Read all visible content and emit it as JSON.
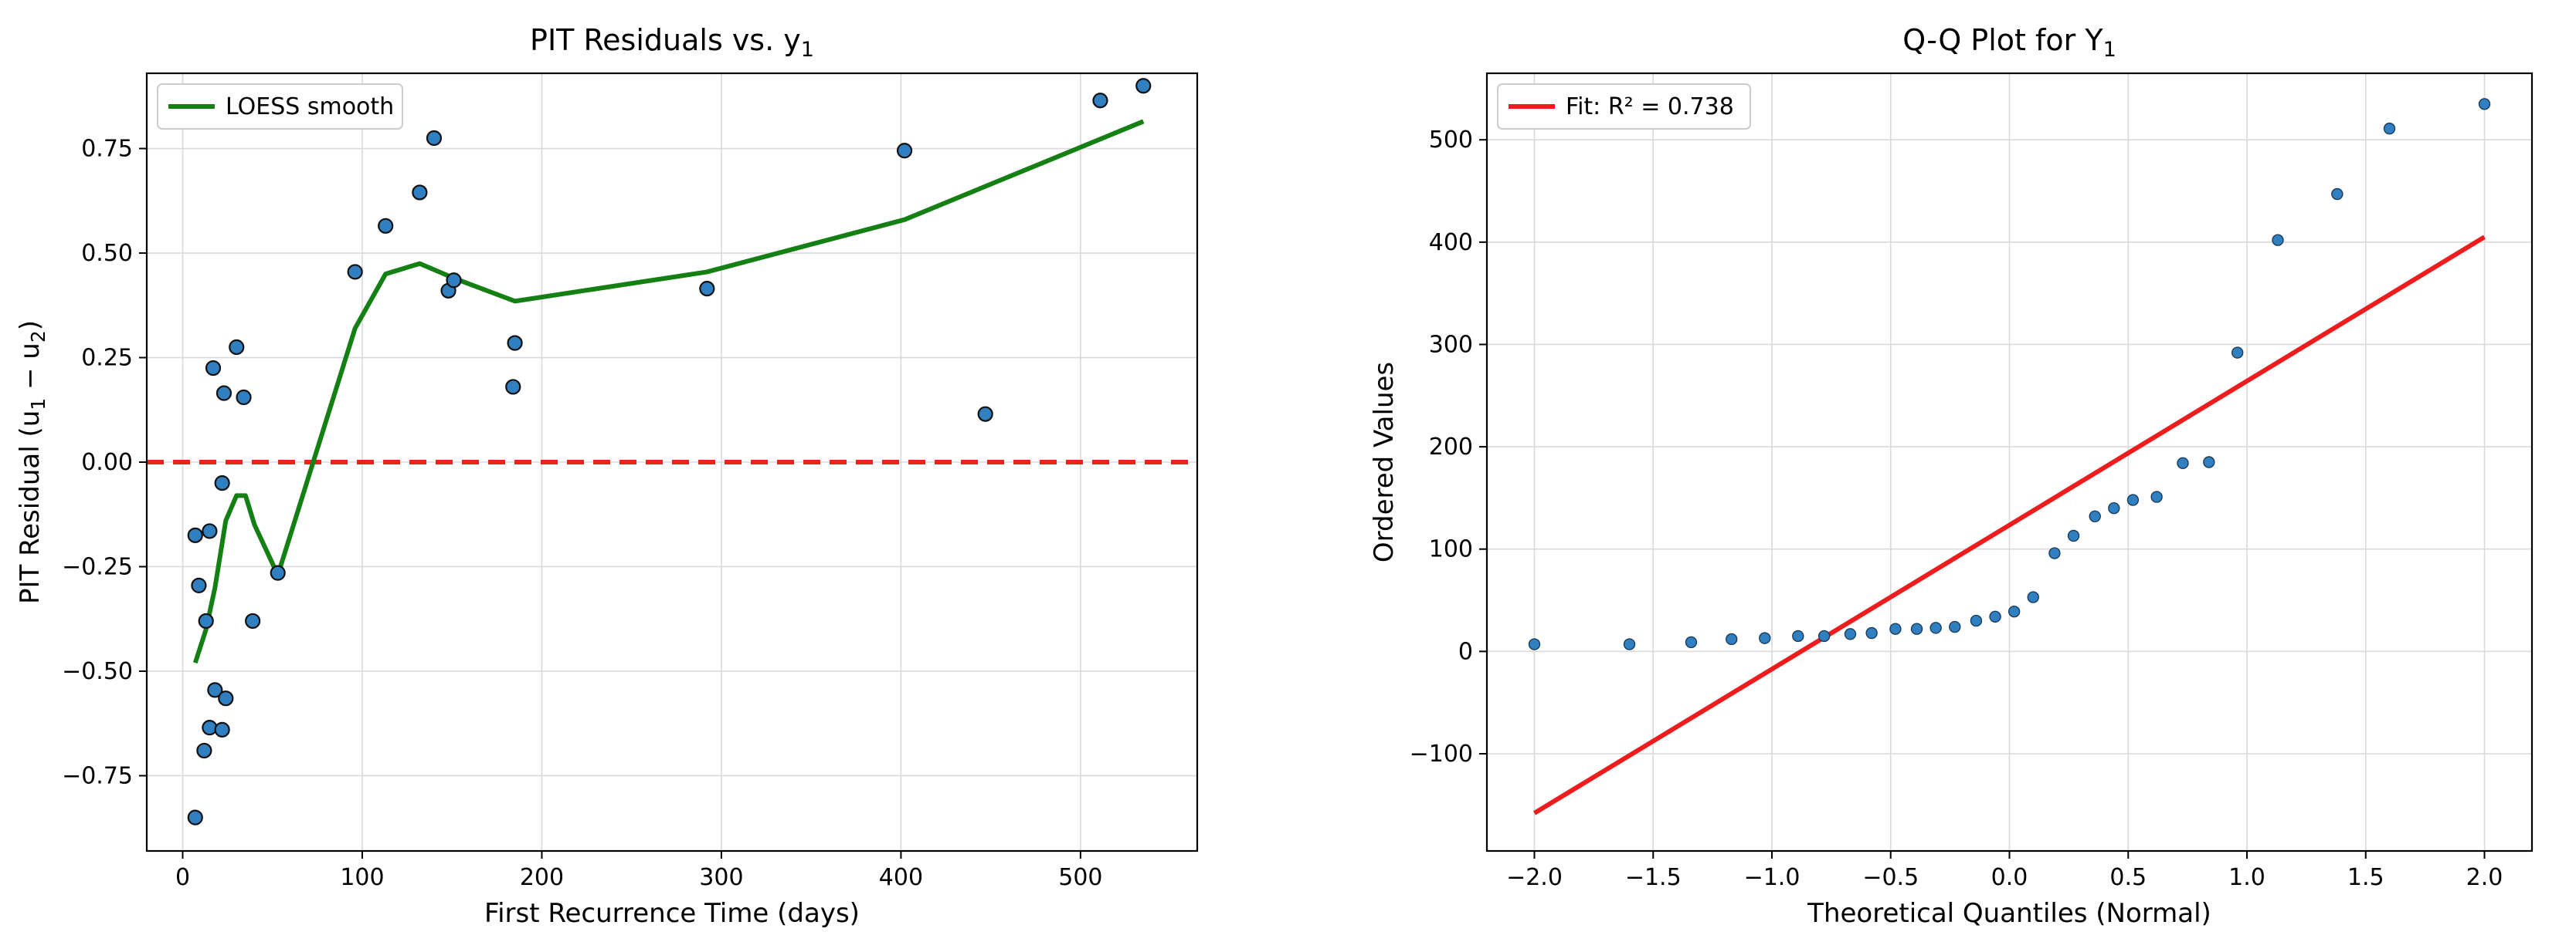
{
  "chart_data": [
    {
      "type": "scatter",
      "title": "PIT Residuals vs. y",
      "title_sub": "1",
      "xlabel": "First Recurrence Time (days)",
      "ylabel": "PIT Residual (u",
      "ylabel_sub1": "1",
      "ylabel_mid": " − u",
      "ylabel_sub2": "2",
      "ylabel_end": ")",
      "xlim": [
        -20,
        565
      ],
      "ylim": [
        -0.93,
        0.93
      ],
      "xticks": [
        0,
        100,
        200,
        300,
        400,
        500
      ],
      "yticks": [
        -0.75,
        -0.5,
        -0.25,
        0.0,
        0.25,
        0.5,
        0.75
      ],
      "ytick_labels": [
        "−0.75",
        "−0.50",
        "−0.25",
        "0.00",
        "0.25",
        "0.50",
        "0.75"
      ],
      "grid": true,
      "legend_position": "top-left",
      "points": [
        {
          "x": 7,
          "y": -0.85
        },
        {
          "x": 7,
          "y": -0.175
        },
        {
          "x": 9,
          "y": -0.295
        },
        {
          "x": 12,
          "y": -0.69
        },
        {
          "x": 13,
          "y": -0.38
        },
        {
          "x": 15,
          "y": -0.635
        },
        {
          "x": 15,
          "y": -0.165
        },
        {
          "x": 17,
          "y": 0.225
        },
        {
          "x": 18,
          "y": -0.545
        },
        {
          "x": 22,
          "y": -0.64
        },
        {
          "x": 22,
          "y": -0.05
        },
        {
          "x": 23,
          "y": 0.165
        },
        {
          "x": 24,
          "y": -0.565
        },
        {
          "x": 30,
          "y": 0.275
        },
        {
          "x": 34,
          "y": 0.155
        },
        {
          "x": 39,
          "y": -0.38
        },
        {
          "x": 53,
          "y": -0.265
        },
        {
          "x": 96,
          "y": 0.455
        },
        {
          "x": 113,
          "y": 0.565
        },
        {
          "x": 132,
          "y": 0.645
        },
        {
          "x": 140,
          "y": 0.775
        },
        {
          "x": 148,
          "y": 0.41
        },
        {
          "x": 151,
          "y": 0.435
        },
        {
          "x": 184,
          "y": 0.18
        },
        {
          "x": 185,
          "y": 0.285
        },
        {
          "x": 292,
          "y": 0.415
        },
        {
          "x": 402,
          "y": 0.745
        },
        {
          "x": 447,
          "y": 0.115
        },
        {
          "x": 511,
          "y": 0.865
        },
        {
          "x": 535,
          "y": 0.9
        }
      ],
      "point_color": "#2f7fc1",
      "series": [
        {
          "name": "LOESS smooth",
          "color": "#148014",
          "x": [
            7,
            13,
            18,
            24,
            30,
            35,
            40,
            53,
            96,
            113,
            132,
            151,
            185,
            292,
            402,
            535
          ],
          "y": [
            -0.48,
            -0.4,
            -0.3,
            -0.14,
            -0.08,
            -0.08,
            -0.15,
            -0.27,
            0.32,
            0.45,
            0.475,
            0.44,
            0.385,
            0.455,
            0.58,
            0.815
          ]
        }
      ],
      "reference_line": {
        "y": 0.0,
        "color": "#e8241c",
        "style": "dashed"
      }
    },
    {
      "type": "scatter",
      "title": "Q-Q Plot for Y",
      "title_sub": "1",
      "xlabel": "Theoretical Quantiles (Normal)",
      "ylabel": "Ordered Values",
      "xlim": [
        -2.2,
        2.2
      ],
      "ylim": [
        -195,
        565
      ],
      "xticks": [
        -2.0,
        -1.5,
        -1.0,
        -0.5,
        0.0,
        0.5,
        1.0,
        1.5,
        2.0
      ],
      "xtick_labels": [
        "−2.0",
        "−1.5",
        "−1.0",
        "−0.5",
        "0.0",
        "0.5",
        "1.0",
        "1.5",
        "2.0"
      ],
      "yticks": [
        -100,
        0,
        100,
        200,
        300,
        400,
        500
      ],
      "ytick_labels": [
        "−100",
        "0",
        "100",
        "200",
        "300",
        "400",
        "500"
      ],
      "grid": true,
      "legend_position": "top-left",
      "point_color": "#2f7fc1",
      "x": [
        -2.0,
        -1.6,
        -1.34,
        -1.17,
        -1.03,
        -0.89,
        -0.78,
        -0.67,
        -0.58,
        -0.48,
        -0.39,
        -0.31,
        -0.23,
        -0.14,
        -0.06,
        0.02,
        0.1,
        0.19,
        0.27,
        0.36,
        0.44,
        0.52,
        0.62,
        0.73,
        0.84,
        0.96,
        1.13,
        1.38,
        1.6,
        2.0
      ],
      "y": [
        7,
        7,
        9,
        12,
        13,
        15,
        15,
        17,
        18,
        22,
        22,
        23,
        24,
        30,
        34,
        39,
        53,
        96,
        113,
        132,
        140,
        148,
        151,
        184,
        185,
        292,
        402,
        447,
        511,
        535
      ],
      "series": [
        {
          "name": "Fit: R² = 0.738",
          "color": "#ee1c1c",
          "x": [
            -2.0,
            2.0
          ],
          "y": [
            -158,
            405
          ]
        }
      ]
    }
  ]
}
